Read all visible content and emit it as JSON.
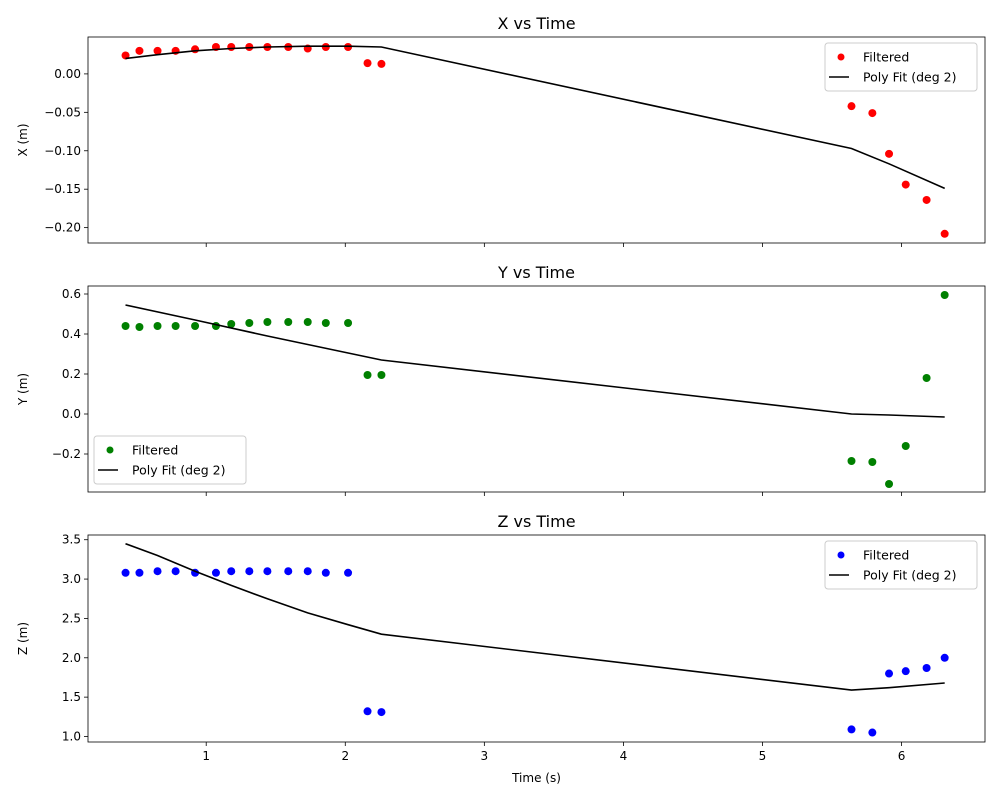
{
  "chart_data": [
    {
      "type": "scatter",
      "title": "X vs Time",
      "xlabel": "",
      "ylabel": "X (m)",
      "xlim": [
        0.15,
        6.6
      ],
      "ylim": [
        -0.22,
        0.048
      ],
      "xticks": [
        1,
        2,
        3,
        4,
        5,
        6
      ],
      "yticks": [
        -0.2,
        -0.15,
        -0.1,
        -0.05,
        0.0
      ],
      "ytick_labels": [
        "−0.20",
        "−0.15",
        "−0.10",
        "−0.05",
        "0.00"
      ],
      "show_xtick_labels": false,
      "legend_loc": "upper-right",
      "color": "#ff0000",
      "series": [
        {
          "name": "Filtered",
          "kind": "scatter",
          "x": [
            0.42,
            0.52,
            0.65,
            0.78,
            0.92,
            1.07,
            1.18,
            1.31,
            1.44,
            1.59,
            1.73,
            1.86,
            2.02,
            2.16,
            2.26,
            5.64,
            5.79,
            5.91,
            6.03,
            6.18,
            6.31
          ],
          "y": [
            0.024,
            0.03,
            0.03,
            0.03,
            0.032,
            0.035,
            0.035,
            0.035,
            0.035,
            0.035,
            0.033,
            0.035,
            0.035,
            0.014,
            0.013,
            -0.042,
            -0.051,
            -0.104,
            -0.144,
            -0.164,
            -0.208
          ]
        },
        {
          "name": "Poly Fit (deg 2)",
          "kind": "line",
          "x": [
            0.42,
            0.65,
            0.92,
            1.18,
            1.44,
            1.73,
            2.02,
            2.26,
            5.64,
            5.91,
            6.31
          ],
          "y": [
            0.02,
            0.025,
            0.03,
            0.033,
            0.035,
            0.036,
            0.036,
            0.035,
            -0.097,
            -0.117,
            -0.149
          ]
        }
      ]
    },
    {
      "type": "scatter",
      "title": "Y vs Time",
      "xlabel": "",
      "ylabel": "Y (m)",
      "xlim": [
        0.15,
        6.6
      ],
      "ylim": [
        -0.39,
        0.64
      ],
      "xticks": [
        1,
        2,
        3,
        4,
        5,
        6
      ],
      "yticks": [
        -0.2,
        0.0,
        0.2,
        0.4,
        0.6
      ],
      "ytick_labels": [
        "−0.2",
        "0.0",
        "0.2",
        "0.4",
        "0.6"
      ],
      "show_xtick_labels": false,
      "legend_loc": "lower-left",
      "color": "#008000",
      "series": [
        {
          "name": "Filtered",
          "kind": "scatter",
          "x": [
            0.42,
            0.52,
            0.65,
            0.78,
            0.92,
            1.07,
            1.18,
            1.31,
            1.44,
            1.59,
            1.73,
            1.86,
            2.02,
            2.16,
            2.26,
            5.64,
            5.79,
            5.91,
            6.03,
            6.18,
            6.31
          ],
          "y": [
            0.44,
            0.435,
            0.44,
            0.44,
            0.44,
            0.44,
            0.45,
            0.455,
            0.46,
            0.46,
            0.46,
            0.455,
            0.455,
            0.195,
            0.195,
            -0.235,
            -0.24,
            -0.35,
            -0.16,
            0.18,
            0.595
          ]
        },
        {
          "name": "Poly Fit (deg 2)",
          "kind": "line",
          "x": [
            0.42,
            0.92,
            1.44,
            2.02,
            2.26,
            5.64,
            5.91,
            6.31
          ],
          "y": [
            0.545,
            0.47,
            0.39,
            0.305,
            0.27,
            0.0,
            -0.005,
            -0.015
          ]
        }
      ]
    },
    {
      "type": "scatter",
      "title": "Z vs Time",
      "xlabel": "Time (s)",
      "ylabel": "Z (m)",
      "xlim": [
        0.15,
        6.6
      ],
      "ylim": [
        0.93,
        3.56
      ],
      "xticks": [
        1,
        2,
        3,
        4,
        5,
        6
      ],
      "yticks": [
        1.0,
        1.5,
        2.0,
        2.5,
        3.0,
        3.5
      ],
      "ytick_labels": [
        "1.0",
        "1.5",
        "2.0",
        "2.5",
        "3.0",
        "3.5"
      ],
      "show_xtick_labels": true,
      "legend_loc": "upper-right",
      "color": "#0000ff",
      "series": [
        {
          "name": "Filtered",
          "kind": "scatter",
          "x": [
            0.42,
            0.52,
            0.65,
            0.78,
            0.92,
            1.07,
            1.18,
            1.31,
            1.44,
            1.59,
            1.73,
            1.86,
            2.02,
            2.16,
            2.26,
            5.64,
            5.79,
            5.91,
            6.03,
            6.18,
            6.31
          ],
          "y": [
            3.08,
            3.08,
            3.1,
            3.1,
            3.08,
            3.08,
            3.1,
            3.1,
            3.1,
            3.1,
            3.1,
            3.08,
            3.08,
            1.32,
            1.31,
            1.09,
            1.05,
            1.8,
            1.83,
            1.87,
            2.0
          ]
        },
        {
          "name": "Poly Fit (deg 2)",
          "kind": "line",
          "x": [
            0.42,
            0.65,
            0.92,
            1.18,
            1.44,
            1.73,
            2.02,
            2.26,
            5.64,
            5.91,
            6.31
          ],
          "y": [
            3.45,
            3.3,
            3.1,
            2.92,
            2.75,
            2.57,
            2.42,
            2.3,
            1.59,
            1.62,
            1.68
          ]
        }
      ]
    }
  ]
}
